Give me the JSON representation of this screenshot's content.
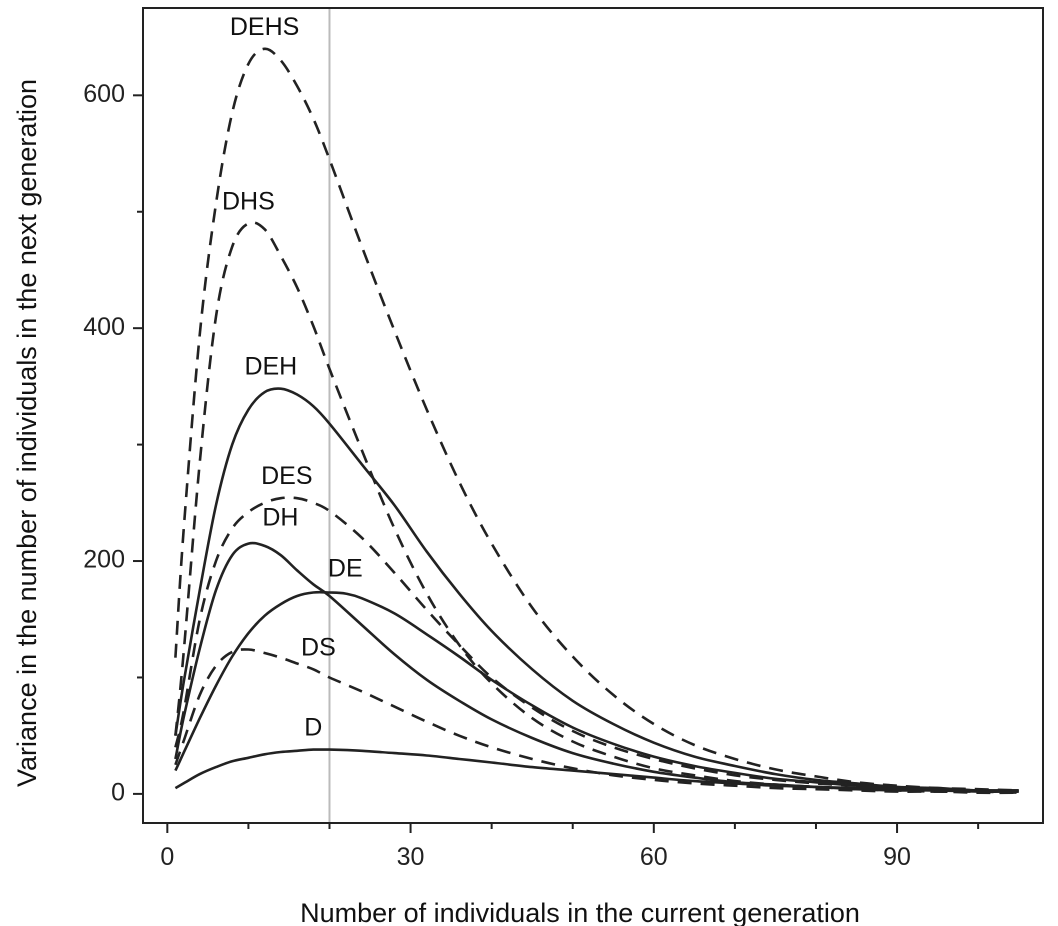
{
  "chart_data": {
    "type": "line",
    "title": "",
    "xlabel": "Number of individuals in the current generation",
    "ylabel": "Variance in the number of individuals in the next generation",
    "xlim": [
      -3,
      108
    ],
    "ylim": [
      -25,
      675
    ],
    "x_ticks": [
      0,
      30,
      60,
      90
    ],
    "x_minor_ticks": [
      0,
      10,
      20,
      30,
      40,
      50,
      60,
      70,
      80,
      90,
      100
    ],
    "y_ticks": [
      0,
      200,
      400,
      600
    ],
    "y_minor_ticks": [
      0,
      100,
      200,
      300,
      400,
      500,
      600
    ],
    "vertical_line_x": 20,
    "grid": false,
    "legend": "none",
    "colors": {
      "lines": "#222222",
      "reference_line": "#bbbbbb"
    },
    "series": [
      {
        "name": "DEHS",
        "style": "dashed",
        "x": [
          1,
          2,
          4,
          6,
          8,
          10,
          12,
          14,
          16,
          18,
          20,
          24,
          28,
          32,
          36,
          40,
          45,
          50,
          55,
          60,
          65,
          70,
          75,
          80,
          85,
          90,
          95,
          100,
          105
        ],
        "y": [
          117,
          225,
          395,
          507,
          585,
          627,
          640,
          630,
          608,
          580,
          545,
          470,
          398,
          330,
          268,
          215,
          160,
          118,
          85,
          60,
          42,
          30,
          21,
          15,
          10,
          7,
          5,
          4,
          3
        ]
      },
      {
        "name": "DHS",
        "style": "dashed",
        "x": [
          1,
          2,
          4,
          6,
          8,
          10,
          12,
          14,
          16,
          18,
          20,
          24,
          28,
          32,
          36,
          40,
          45,
          50,
          55,
          60,
          65,
          70,
          75,
          80,
          85,
          90,
          95,
          100,
          105
        ],
        "y": [
          50,
          120,
          285,
          410,
          470,
          490,
          485,
          462,
          435,
          402,
          365,
          295,
          228,
          172,
          128,
          95,
          65,
          45,
          32,
          22,
          16,
          11,
          8,
          6,
          4,
          3,
          2,
          2,
          1
        ]
      },
      {
        "name": "DEH",
        "style": "solid",
        "x": [
          1,
          2,
          4,
          6,
          8,
          10,
          12,
          14,
          16,
          18,
          20,
          24,
          28,
          32,
          36,
          40,
          45,
          50,
          55,
          60,
          65,
          70,
          75,
          80,
          85,
          90,
          95,
          100,
          105
        ],
        "y": [
          50,
          95,
          175,
          248,
          300,
          330,
          345,
          348,
          343,
          333,
          318,
          283,
          248,
          208,
          172,
          140,
          107,
          80,
          60,
          44,
          32,
          24,
          17,
          12,
          9,
          6,
          5,
          3,
          3
        ]
      },
      {
        "name": "DES",
        "style": "dashed",
        "x": [
          1,
          2,
          4,
          6,
          8,
          10,
          12,
          14,
          16,
          18,
          20,
          24,
          28,
          32,
          36,
          40,
          45,
          50,
          55,
          60,
          65,
          70,
          75,
          80,
          85,
          90,
          95,
          100,
          105
        ],
        "y": [
          40,
          70,
          150,
          200,
          228,
          242,
          250,
          254,
          254,
          250,
          243,
          220,
          190,
          158,
          128,
          100,
          74,
          54,
          40,
          30,
          22,
          16,
          12,
          9,
          7,
          5,
          4,
          3,
          2
        ]
      },
      {
        "name": "DH",
        "style": "solid",
        "x": [
          1,
          2,
          4,
          6,
          8,
          10,
          12,
          14,
          16,
          18,
          20,
          24,
          28,
          32,
          36,
          40,
          45,
          50,
          55,
          60,
          65,
          70,
          75,
          80,
          85,
          90,
          95,
          100,
          105
        ],
        "y": [
          30,
          65,
          125,
          175,
          205,
          215,
          213,
          205,
          192,
          180,
          170,
          145,
          120,
          98,
          80,
          64,
          48,
          35,
          26,
          19,
          14,
          10,
          8,
          6,
          4,
          3,
          3,
          2,
          2
        ]
      },
      {
        "name": "DE",
        "style": "solid",
        "x": [
          1,
          2,
          4,
          6,
          8,
          10,
          12,
          14,
          16,
          18,
          20,
          22,
          24,
          28,
          32,
          36,
          40,
          45,
          50,
          55,
          60,
          65,
          70,
          75,
          80,
          85,
          90,
          95,
          100,
          105
        ],
        "y": [
          20,
          35,
          65,
          93,
          118,
          138,
          153,
          163,
          170,
          173,
          173,
          172,
          168,
          155,
          137,
          118,
          98,
          76,
          57,
          43,
          32,
          24,
          18,
          13,
          10,
          7,
          5,
          4,
          3,
          3
        ]
      },
      {
        "name": "DS",
        "style": "dashed",
        "x": [
          1,
          2,
          4,
          6,
          8,
          10,
          12,
          14,
          16,
          18,
          20,
          24,
          28,
          32,
          36,
          40,
          45,
          50,
          55,
          60,
          65,
          70,
          75,
          80,
          85,
          90,
          95,
          100,
          105
        ],
        "y": [
          25,
          45,
          85,
          110,
          122,
          124,
          121,
          117,
          112,
          107,
          100,
          88,
          75,
          62,
          50,
          40,
          30,
          22,
          16,
          12,
          9,
          7,
          5,
          4,
          3,
          2,
          2,
          1,
          1
        ]
      },
      {
        "name": "D",
        "style": "solid",
        "x": [
          1,
          2,
          4,
          6,
          8,
          10,
          12,
          14,
          16,
          18,
          20,
          24,
          28,
          32,
          36,
          40,
          45,
          50,
          55,
          60,
          65,
          70,
          75,
          80,
          85,
          90,
          95,
          100,
          105
        ],
        "y": [
          5,
          9,
          17,
          23,
          28,
          31,
          34,
          36,
          37,
          38,
          38,
          37,
          35,
          33,
          30,
          27,
          23,
          20,
          17,
          14,
          11,
          9,
          7,
          6,
          5,
          4,
          3,
          3,
          2
        ]
      }
    ]
  }
}
